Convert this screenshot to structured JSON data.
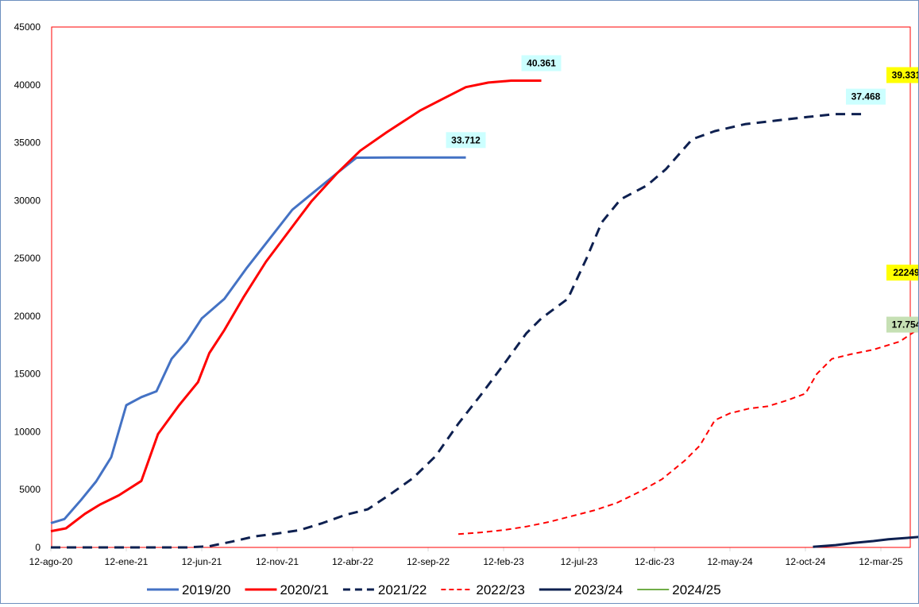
{
  "chart_data": {
    "type": "line",
    "title": "",
    "xlabel": "",
    "ylabel": "",
    "ylim": [
      0,
      45000
    ],
    "yticks": [
      "0",
      "5000",
      "10000",
      "15000",
      "20000",
      "25000",
      "30000",
      "35000",
      "40000",
      "45000"
    ],
    "xticks": [
      "12-ago-20",
      "12-ene-21",
      "12-jun-21",
      "12-nov-21",
      "12-abr-22",
      "12-sep-22",
      "12-feb-23",
      "12-jul-23",
      "12-dic-23",
      "12-may-24",
      "12-oct-24",
      "12-mar-25"
    ],
    "grid": false,
    "legend": "bottom",
    "colors": {
      "axis": "#d9d9d9",
      "plot_border": "#ff0000",
      "frame_border": "#6d8fbf",
      "cyan_label_bg": "#ccffff",
      "yellow_label_bg": "#ffff00",
      "green_label_bg": "#c6e0b4"
    },
    "series": [
      {
        "name": "2019/20",
        "color": "#4472c4",
        "dash": "solid",
        "width": 3,
        "label": "33.712",
        "label_bg": "cyan",
        "points": [
          [
            0,
            2100
          ],
          [
            0.18,
            2450
          ],
          [
            0.4,
            4100
          ],
          [
            0.6,
            5700
          ],
          [
            0.8,
            7800
          ],
          [
            1.0,
            12300
          ],
          [
            1.2,
            13000
          ],
          [
            1.4,
            13500
          ],
          [
            1.6,
            16300
          ],
          [
            1.8,
            17800
          ],
          [
            2.0,
            19800
          ],
          [
            2.3,
            21500
          ],
          [
            2.6,
            24200
          ],
          [
            2.9,
            26700
          ],
          [
            3.2,
            29200
          ],
          [
            3.5,
            30800
          ],
          [
            3.8,
            32400
          ],
          [
            4.05,
            33700
          ],
          [
            4.5,
            33712
          ],
          [
            5.0,
            33712
          ],
          [
            5.5,
            33712
          ]
        ]
      },
      {
        "name": "2020/21",
        "color": "#ff0000",
        "dash": "solid",
        "width": 3,
        "label": "40.361",
        "label_bg": "cyan",
        "points": [
          [
            0,
            1400
          ],
          [
            0.2,
            1650
          ],
          [
            0.45,
            2900
          ],
          [
            0.65,
            3700
          ],
          [
            0.9,
            4500
          ],
          [
            1.2,
            5750
          ],
          [
            1.42,
            9800
          ],
          [
            1.7,
            12300
          ],
          [
            1.95,
            14300
          ],
          [
            2.1,
            16800
          ],
          [
            2.3,
            18800
          ],
          [
            2.55,
            21600
          ],
          [
            2.85,
            24700
          ],
          [
            3.15,
            27300
          ],
          [
            3.45,
            29900
          ],
          [
            3.8,
            32400
          ],
          [
            4.1,
            34300
          ],
          [
            4.45,
            35900
          ],
          [
            4.9,
            37800
          ],
          [
            5.2,
            38800
          ],
          [
            5.5,
            39800
          ],
          [
            5.8,
            40200
          ],
          [
            6.1,
            40361
          ],
          [
            6.5,
            40361
          ]
        ]
      },
      {
        "name": "2021/22",
        "color": "#0e2050",
        "dash": "heavy",
        "width": 3,
        "label": "37.468",
        "label_bg": "cyan",
        "points": [
          [
            0,
            0
          ],
          [
            1.0,
            0
          ],
          [
            1.8,
            0
          ],
          [
            2.1,
            100
          ],
          [
            2.4,
            500
          ],
          [
            2.7,
            950
          ],
          [
            3.0,
            1200
          ],
          [
            3.3,
            1500
          ],
          [
            3.6,
            2100
          ],
          [
            3.9,
            2800
          ],
          [
            4.2,
            3300
          ],
          [
            4.5,
            4600
          ],
          [
            4.8,
            6000
          ],
          [
            5.1,
            7900
          ],
          [
            5.4,
            10700
          ],
          [
            5.7,
            13200
          ],
          [
            6.0,
            15800
          ],
          [
            6.3,
            18500
          ],
          [
            6.5,
            19800
          ],
          [
            6.85,
            21500
          ],
          [
            7.1,
            25000
          ],
          [
            7.3,
            28100
          ],
          [
            7.55,
            30100
          ],
          [
            7.9,
            31300
          ],
          [
            8.15,
            32700
          ],
          [
            8.5,
            35300
          ],
          [
            8.8,
            36000
          ],
          [
            9.2,
            36600
          ],
          [
            9.6,
            36900
          ],
          [
            10.0,
            37200
          ],
          [
            10.4,
            37468
          ],
          [
            10.8,
            37468
          ]
        ]
      },
      {
        "name": "2022/23",
        "color": "#ff0000",
        "dash": "light",
        "width": 2,
        "label": "22249",
        "label_bg": "yellow",
        "points": [
          [
            5.4,
            1150
          ],
          [
            5.7,
            1300
          ],
          [
            6.0,
            1500
          ],
          [
            6.3,
            1800
          ],
          [
            6.6,
            2200
          ],
          [
            6.9,
            2700
          ],
          [
            7.2,
            3200
          ],
          [
            7.5,
            3850
          ],
          [
            7.8,
            4800
          ],
          [
            8.1,
            5900
          ],
          [
            8.4,
            7500
          ],
          [
            8.6,
            8800
          ],
          [
            8.8,
            11000
          ],
          [
            9.0,
            11600
          ],
          [
            9.25,
            12000
          ],
          [
            9.5,
            12200
          ],
          [
            9.75,
            12700
          ],
          [
            10.0,
            13300
          ],
          [
            10.15,
            15000
          ],
          [
            10.35,
            16300
          ],
          [
            10.6,
            16700
          ],
          [
            10.9,
            17100
          ],
          [
            11.25,
            17800
          ],
          [
            11.5,
            18900
          ],
          [
            11.75,
            19800
          ],
          [
            12.05,
            20400
          ],
          [
            12.3,
            21100
          ],
          [
            12.6,
            21400
          ],
          [
            12.9,
            21600
          ],
          [
            13.2,
            21750
          ],
          [
            13.5,
            21850
          ],
          [
            13.9,
            21950
          ],
          [
            14.3,
            22000
          ],
          [
            14.7,
            22050
          ],
          [
            15.1,
            22100
          ],
          [
            15.5,
            22150
          ],
          [
            15.9,
            22200
          ],
          [
            16.3,
            22220
          ],
          [
            16.7,
            22230
          ],
          [
            17.1,
            22240
          ],
          [
            17.5,
            22249
          ]
        ]
      },
      {
        "name": "2023/24",
        "color": "#0e2050",
        "dash": "solid",
        "width": 3,
        "label": "39.331",
        "label_bg": "yellow",
        "points": [
          [
            10.1,
            50
          ],
          [
            10.4,
            200
          ],
          [
            10.65,
            400
          ],
          [
            10.9,
            550
          ],
          [
            11.1,
            700
          ],
          [
            11.4,
            850
          ],
          [
            11.7,
            1000
          ],
          [
            11.95,
            1150
          ],
          [
            12.2,
            1400
          ],
          [
            12.45,
            1750
          ],
          [
            12.55,
            2400
          ],
          [
            12.7,
            2600
          ],
          [
            12.85,
            2900
          ],
          [
            12.98,
            3700
          ],
          [
            13.12,
            4150
          ],
          [
            13.3,
            4600
          ],
          [
            13.42,
            5000
          ],
          [
            13.5,
            5500
          ],
          [
            13.58,
            6500
          ],
          [
            13.68,
            7500
          ],
          [
            13.78,
            8200
          ],
          [
            13.88,
            9000
          ],
          [
            13.98,
            9800
          ],
          [
            14.08,
            10400
          ],
          [
            14.18,
            10600
          ],
          [
            14.3,
            11400
          ],
          [
            14.45,
            12200
          ],
          [
            14.55,
            12900
          ],
          [
            14.65,
            13600
          ],
          [
            14.75,
            15000
          ],
          [
            14.85,
            16200
          ],
          [
            14.95,
            17700
          ],
          [
            15.15,
            19200
          ],
          [
            15.35,
            20900
          ],
          [
            15.6,
            22000
          ],
          [
            15.85,
            23000
          ],
          [
            16.15,
            24000
          ],
          [
            16.5,
            25100
          ],
          [
            16.85,
            27300
          ],
          [
            17.3,
            29300
          ],
          [
            17.75,
            31200
          ],
          [
            18.1,
            32900
          ],
          [
            18.5,
            34400
          ],
          [
            18.95,
            36100
          ],
          [
            19.3,
            37500
          ],
          [
            19.65,
            38300
          ],
          [
            20.05,
            38800
          ],
          [
            20.4,
            39100
          ],
          [
            20.7,
            39331
          ]
        ]
      },
      {
        "name": "2024/25",
        "color": "#70ad47",
        "dash": "solid",
        "width": 2,
        "label": "17.754",
        "label_bg": "green",
        "points": [
          [
            15.1,
            650
          ],
          [
            15.5,
            750
          ],
          [
            15.85,
            850
          ],
          [
            16.2,
            1000
          ],
          [
            16.6,
            1200
          ],
          [
            17.0,
            1400
          ],
          [
            17.4,
            1800
          ],
          [
            17.7,
            2100
          ],
          [
            18.1,
            2400
          ],
          [
            18.45,
            3900
          ],
          [
            18.75,
            4400
          ],
          [
            19.1,
            5700
          ],
          [
            19.5,
            9000
          ],
          [
            19.85,
            12700
          ],
          [
            20.2,
            15500
          ],
          [
            20.7,
            17754
          ]
        ]
      }
    ]
  }
}
